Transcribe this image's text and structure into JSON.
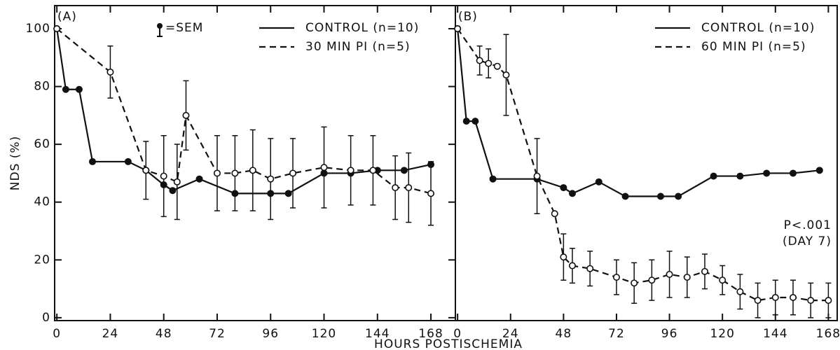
{
  "xlabel": "HOURS POSTISCHEMIA",
  "chart_data": [
    {
      "type": "line",
      "panel_label": "(A)",
      "ylabel": "NDS (%)",
      "annotation": "=SEM",
      "xlim": [
        -1,
        179
      ],
      "ylim": [
        -1,
        108
      ],
      "xticks": [
        0,
        24,
        48,
        72,
        96,
        120,
        144,
        168
      ],
      "yticks": [
        0,
        20,
        40,
        60,
        80,
        100
      ],
      "series": [
        {
          "name": "CONTROL (n=10)",
          "color": "#111111",
          "style": "solid",
          "marker": "filled",
          "x": [
            0,
            4,
            10,
            16,
            32,
            40,
            48,
            52,
            64,
            80,
            96,
            104,
            120,
            132,
            144,
            156,
            168
          ],
          "values": [
            100,
            79,
            79,
            54,
            54,
            51,
            46,
            44,
            48,
            43,
            43,
            43,
            50,
            50,
            51,
            51,
            53
          ]
        },
        {
          "name": "30 MIN PI (n=5)",
          "color": "#111111",
          "style": "dashed",
          "marker": "open",
          "x": [
            0,
            24,
            40,
            48,
            54,
            58,
            72,
            80,
            88,
            96,
            106,
            120,
            132,
            142,
            152,
            158,
            168
          ],
          "values": [
            100,
            85,
            51,
            49,
            47,
            70,
            50,
            50,
            51,
            48,
            50,
            52,
            51,
            51,
            45,
            45,
            43
          ],
          "errors": [
            0,
            9,
            10,
            14,
            13,
            12,
            13,
            13,
            14,
            14,
            12,
            14,
            12,
            12,
            11,
            12,
            11
          ]
        }
      ]
    },
    {
      "type": "line",
      "panel_label": "(B)",
      "annotation": "P<.001",
      "annotation2": "(DAY 7)",
      "xlim": [
        -1,
        172
      ],
      "ylim": [
        -1,
        108
      ],
      "xticks": [
        0,
        24,
        48,
        72,
        96,
        120,
        144,
        168
      ],
      "series": [
        {
          "name": "CONTROL (n=10)",
          "color": "#111111",
          "style": "solid",
          "marker": "filled",
          "x": [
            0,
            4,
            8,
            16,
            36,
            48,
            52,
            64,
            76,
            92,
            100,
            116,
            128,
            140,
            152,
            164
          ],
          "values": [
            100,
            68,
            68,
            48,
            48,
            45,
            43,
            47,
            42,
            42,
            42,
            49,
            49,
            50,
            50,
            51
          ]
        },
        {
          "name": "60 MIN PI (n=5)",
          "color": "#111111",
          "style": "dashed",
          "marker": "open",
          "x": [
            0,
            10,
            14,
            18,
            22,
            36,
            44,
            48,
            52,
            60,
            72,
            80,
            88,
            96,
            104,
            112,
            120,
            128,
            136,
            144,
            152,
            160,
            168
          ],
          "values": [
            100,
            89,
            88,
            87,
            84,
            49,
            36,
            21,
            18,
            17,
            14,
            12,
            13,
            15,
            14,
            16,
            13,
            9,
            6,
            7,
            7,
            6,
            6
          ],
          "errors": [
            0,
            5,
            5,
            0,
            14,
            13,
            0,
            8,
            6,
            6,
            6,
            7,
            7,
            8,
            7,
            6,
            5,
            6,
            6,
            6,
            6,
            6,
            6
          ]
        }
      ]
    }
  ]
}
